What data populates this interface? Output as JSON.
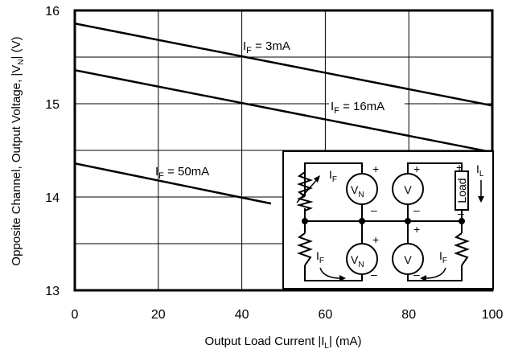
{
  "chart_data": {
    "type": "line",
    "title": "",
    "xlabel_parts": {
      "main": "Output Load Current |I",
      "sub": "L",
      "tail": "| (mA)"
    },
    "ylabel_parts": {
      "main": "Opposite Channel, Output Voltage, |V",
      "sub": "N",
      "tail": "| (V)"
    },
    "xlim": [
      0,
      100
    ],
    "ylim": [
      13,
      16
    ],
    "xticks": [
      "0",
      "20",
      "40",
      "60",
      "80",
      "100"
    ],
    "yticks": [
      "13",
      "14",
      "15",
      "16"
    ],
    "grid": true,
    "series": [
      {
        "label_main": "I",
        "label_sub": "F",
        "label_tail": " = 3mA",
        "x": [
          0,
          100
        ],
        "y": [
          15.86,
          14.98
        ]
      },
      {
        "label_main": "I",
        "label_sub": "F",
        "label_tail": " = 16mA",
        "x": [
          0,
          100
        ],
        "y": [
          15.36,
          14.48
        ]
      },
      {
        "label_main": "I",
        "label_sub": "F",
        "label_tail": " = 50mA",
        "x": [
          0,
          47
        ],
        "y": [
          14.36,
          13.93
        ]
      }
    ]
  },
  "inset": {
    "plus": "+",
    "minus": "–",
    "if_main": "I",
    "if_sub": "F",
    "vn_main": "V",
    "vn_sub": "N",
    "v": "V",
    "load": "Load",
    "il_main": "I",
    "il_sub": "L"
  }
}
